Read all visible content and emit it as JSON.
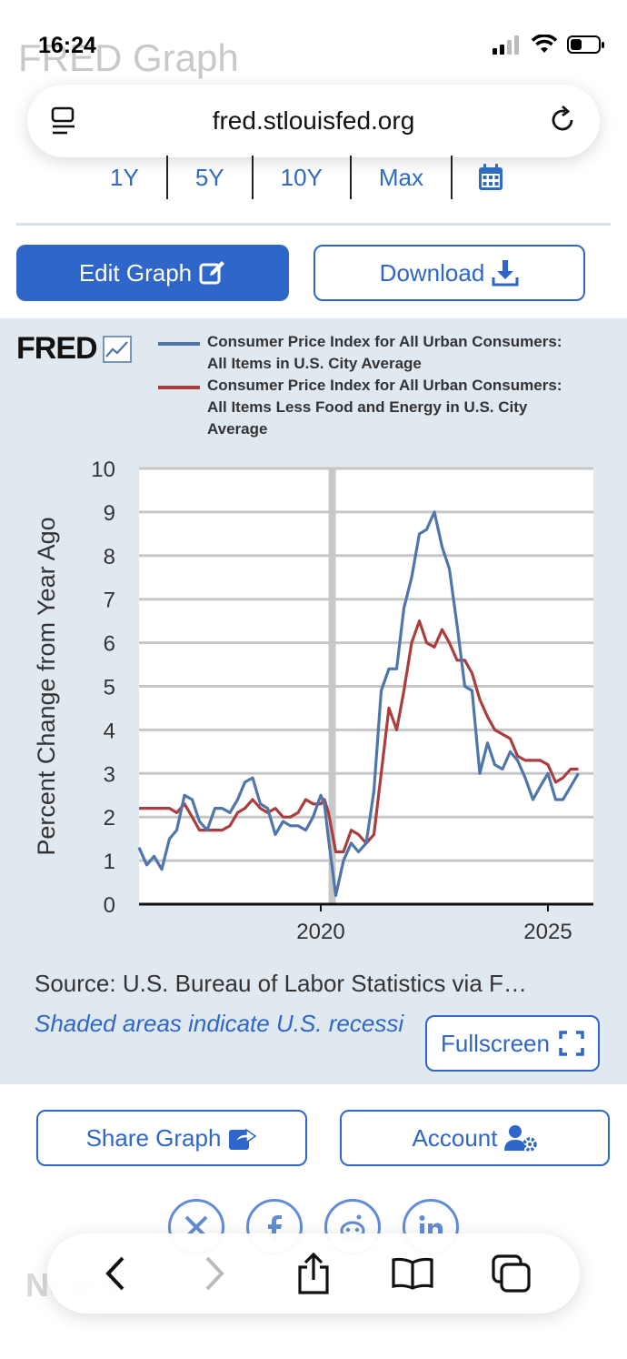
{
  "browser": {
    "time": "16:24",
    "page_title": "FRED Graph",
    "url": "fred.stlouisfed.org"
  },
  "range_buttons": [
    {
      "label": "1Y"
    },
    {
      "label": "5Y"
    },
    {
      "label": "10Y"
    },
    {
      "label": "Max"
    }
  ],
  "actions": {
    "edit_graph": "Edit Graph",
    "download": "Download",
    "share_graph": "Share Graph",
    "account": "Account",
    "fullscreen": "Fullscreen"
  },
  "chart_panel": {
    "logo": "FRED",
    "source": "Source: U.S. Bureau of Labor Statistics via F…",
    "recession_note": "Shaded areas indicate U.S. recessi"
  },
  "faded_bottom_text": "Notes",
  "colors": {
    "accent": "#2e66c9",
    "series_all_items": "#4f76aa",
    "series_core": "#aa3e3e",
    "panel_bg": "#e1e9f0"
  },
  "chart_data": {
    "type": "line",
    "title": "",
    "ylabel": "Percent Change from Year Ago",
    "xlabel": "",
    "ylim": [
      0,
      10
    ],
    "yticks": [
      "0",
      "1",
      "2",
      "3",
      "4",
      "5",
      "6",
      "7",
      "8",
      "9",
      "10"
    ],
    "xlim": [
      2016.0,
      2026.0
    ],
    "xticks": [
      {
        "value": 2020,
        "label": "2020"
      },
      {
        "value": 2025,
        "label": "2025"
      }
    ],
    "recession": [
      2020.17,
      2020.33
    ],
    "series": [
      {
        "name": "Consumer Price Index for All Urban Consumers: All Items in U.S. City Average",
        "color": "#4f76aa",
        "x": [
          2016.0,
          2016.17,
          2016.33,
          2016.5,
          2016.67,
          2016.83,
          2017.0,
          2017.17,
          2017.33,
          2017.5,
          2017.67,
          2017.83,
          2018.0,
          2018.17,
          2018.33,
          2018.5,
          2018.67,
          2018.83,
          2019.0,
          2019.17,
          2019.33,
          2019.5,
          2019.67,
          2019.83,
          2020.0,
          2020.08,
          2020.17,
          2020.33,
          2020.5,
          2020.67,
          2020.83,
          2021.0,
          2021.17,
          2021.33,
          2021.5,
          2021.67,
          2021.83,
          2022.0,
          2022.17,
          2022.33,
          2022.5,
          2022.67,
          2022.83,
          2023.0,
          2023.17,
          2023.33,
          2023.5,
          2023.67,
          2023.83,
          2024.0,
          2024.17,
          2024.33,
          2024.5,
          2024.67,
          2024.83,
          2025.0,
          2025.17,
          2025.33,
          2025.5,
          2025.67
        ],
        "values": [
          1.3,
          0.9,
          1.1,
          0.8,
          1.5,
          1.7,
          2.5,
          2.4,
          1.9,
          1.7,
          2.2,
          2.2,
          2.1,
          2.4,
          2.8,
          2.9,
          2.3,
          2.2,
          1.6,
          1.9,
          1.8,
          1.8,
          1.7,
          2.0,
          2.5,
          2.3,
          1.5,
          0.2,
          1.0,
          1.4,
          1.2,
          1.4,
          2.6,
          4.9,
          5.4,
          5.4,
          6.8,
          7.5,
          8.5,
          8.6,
          9.0,
          8.2,
          7.7,
          6.4,
          5.0,
          4.9,
          3.0,
          3.7,
          3.2,
          3.1,
          3.5,
          3.3,
          2.9,
          2.4,
          2.7,
          3.0,
          2.4,
          2.4,
          2.7,
          3.0
        ]
      },
      {
        "name": "Consumer Price Index for All Urban Consumers: All Items Less Food and Energy in U.S. City Average",
        "color": "#aa3e3e",
        "x": [
          2016.0,
          2016.17,
          2016.33,
          2016.5,
          2016.67,
          2016.83,
          2017.0,
          2017.17,
          2017.33,
          2017.5,
          2017.67,
          2017.83,
          2018.0,
          2018.17,
          2018.33,
          2018.5,
          2018.67,
          2018.83,
          2019.0,
          2019.17,
          2019.33,
          2019.5,
          2019.67,
          2019.83,
          2020.0,
          2020.08,
          2020.17,
          2020.33,
          2020.5,
          2020.67,
          2020.83,
          2021.0,
          2021.17,
          2021.33,
          2021.5,
          2021.67,
          2021.83,
          2022.0,
          2022.17,
          2022.33,
          2022.5,
          2022.67,
          2022.83,
          2023.0,
          2023.17,
          2023.33,
          2023.5,
          2023.67,
          2023.83,
          2024.0,
          2024.17,
          2024.33,
          2024.5,
          2024.67,
          2024.83,
          2025.0,
          2025.17,
          2025.33,
          2025.5,
          2025.67
        ],
        "values": [
          2.2,
          2.2,
          2.2,
          2.2,
          2.2,
          2.1,
          2.3,
          2.0,
          1.7,
          1.7,
          1.7,
          1.7,
          1.8,
          2.1,
          2.2,
          2.4,
          2.2,
          2.1,
          2.2,
          2.0,
          2.0,
          2.1,
          2.4,
          2.3,
          2.3,
          2.4,
          2.1,
          1.2,
          1.2,
          1.7,
          1.6,
          1.4,
          1.6,
          3.0,
          4.5,
          4.0,
          4.9,
          6.0,
          6.5,
          6.0,
          5.9,
          6.3,
          6.0,
          5.6,
          5.6,
          5.3,
          4.7,
          4.3,
          4.0,
          3.9,
          3.8,
          3.4,
          3.3,
          3.3,
          3.3,
          3.2,
          2.8,
          2.9,
          3.1,
          3.1
        ]
      }
    ]
  }
}
